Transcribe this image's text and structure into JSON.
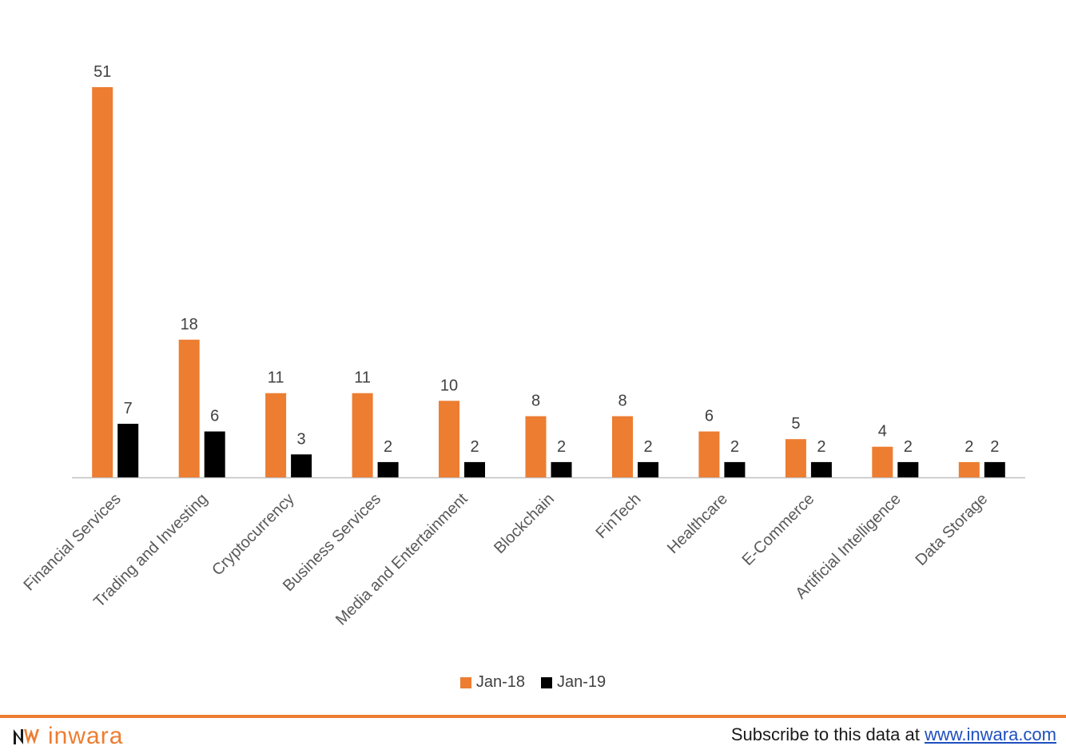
{
  "chart_data": {
    "type": "bar",
    "categories": [
      "Financial Services",
      "Trading and Investing",
      "Cryptocurrency",
      "Business Services",
      "Media and Entertainment",
      "Blockchain",
      "FinTech",
      "Healthcare",
      "E-Commerce",
      "Artificial Intelligence",
      "Data Storage"
    ],
    "series": [
      {
        "name": "Jan-18",
        "color": "#ED7D31",
        "values": [
          51,
          18,
          11,
          11,
          10,
          8,
          8,
          6,
          5,
          4,
          2
        ]
      },
      {
        "name": "Jan-19",
        "color": "#000000",
        "values": [
          7,
          6,
          3,
          2,
          2,
          2,
          2,
          2,
          2,
          2,
          2
        ]
      }
    ],
    "ylim": [
      0,
      51
    ],
    "grid": false,
    "data_labels": true,
    "legend_position": "bottom"
  },
  "footer": {
    "brand": "inwara",
    "subscribe_text": "Subscribe to this data at ",
    "subscribe_link": "www.inwara.com",
    "accent_color": "#ED7D31"
  }
}
